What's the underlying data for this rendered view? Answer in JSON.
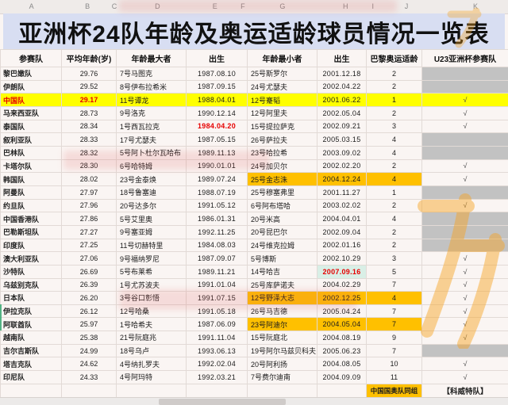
{
  "title": "亚洲杯24队年龄及奥运适龄球员情况一览表",
  "spreadsheet": {
    "column_letters": [
      "A",
      "B",
      "C",
      "D",
      "E",
      "F",
      "G",
      "H",
      "I",
      "J",
      "K"
    ],
    "letter_positions_pct": [
      6.2,
      17.2,
      22.5,
      31.0,
      42.3,
      47.8,
      55.6,
      68.0,
      73.4,
      80.0,
      93.6
    ]
  },
  "table": {
    "headers": [
      "参赛队",
      "平均年龄(岁)",
      "年龄最大者",
      "出生",
      "年龄最小者",
      "出生",
      "巴黎奥运适龄",
      "U23亚洲杯参赛队"
    ],
    "check_glyph": "√",
    "rows": [
      {
        "team": "黎巴嫩队",
        "avg": "29.76",
        "oldest": "7号马图克",
        "oldest_birth": "1987.08.10",
        "youngest": "25号斯罗尔",
        "youngest_birth": "2001.12.18",
        "paris": "2",
        "u23": false,
        "hl": {}
      },
      {
        "team": "伊朗队",
        "avg": "29.52",
        "oldest": "8号伊布拉希米",
        "oldest_birth": "1987.09.15",
        "youngest": "24号尤瑟夫",
        "youngest_birth": "2002.04.22",
        "paris": "2",
        "u23": false,
        "hl": {}
      },
      {
        "team": "中国队",
        "avg": "29.17",
        "oldest": "11号谭龙",
        "oldest_birth": "1988.04.01",
        "youngest": "12号蹇韬",
        "youngest_birth": "2001.06.22",
        "paris": "1",
        "u23": true,
        "hl": {
          "row": "yellow",
          "team": "red",
          "avg": "red"
        }
      },
      {
        "team": "马来西亚队",
        "avg": "28.73",
        "oldest": "9号洛克",
        "oldest_birth": "1990.12.14",
        "youngest": "12号阿里夫",
        "youngest_birth": "2002.05.04",
        "paris": "2",
        "u23": true,
        "hl": {}
      },
      {
        "team": "泰国队",
        "avg": "28.34",
        "oldest": "1号西瓦拉克",
        "oldest_birth": "1984.04.20",
        "youngest": "15号提拉萨克",
        "youngest_birth": "2002.09.21",
        "paris": "3",
        "u23": true,
        "hl": {
          "oldest_birth": "red"
        }
      },
      {
        "team": "叙利亚队",
        "avg": "28.33",
        "oldest": "17号尤瑟夫",
        "oldest_birth": "1987.05.15",
        "youngest": "26号萨拉夫",
        "youngest_birth": "2005.03.15",
        "paris": "4",
        "u23": false,
        "hl": {}
      },
      {
        "team": "巴林队",
        "avg": "28.32",
        "oldest": "5号阿卜杜尔瓦哈布",
        "oldest_birth": "1989.11.13",
        "youngest": "23号哈拉希",
        "youngest_birth": "2003.09.02",
        "paris": "4",
        "u23": false,
        "hl": {}
      },
      {
        "team": "卡塔尔队",
        "avg": "28.30",
        "oldest": "6号哈特姆",
        "oldest_birth": "1990.01.01",
        "youngest": "24号加贝尔",
        "youngest_birth": "2002.02.20",
        "paris": "2",
        "u23": true,
        "hl": {}
      },
      {
        "team": "韩国队",
        "avg": "28.02",
        "oldest": "23号金泰焕",
        "oldest_birth": "1989.07.24",
        "youngest": "25号金志洙",
        "youngest_birth": "2004.12.24",
        "paris": "4",
        "u23": true,
        "hl": {
          "youngest": "orange",
          "youngest_birth": "orange",
          "paris": "orange"
        }
      },
      {
        "team": "阿曼队",
        "avg": "27.97",
        "oldest": "18号鲁塞迪",
        "oldest_birth": "1988.07.19",
        "youngest": "25号穆塞弗里",
        "youngest_birth": "2001.11.27",
        "paris": "1",
        "u23": false,
        "hl": {}
      },
      {
        "team": "约旦队",
        "avg": "27.96",
        "oldest": "20号达多尔",
        "oldest_birth": "1991.05.12",
        "youngest": "6号阿布塔哈",
        "youngest_birth": "2003.02.02",
        "paris": "2",
        "u23": true,
        "hl": {}
      },
      {
        "team": "中国香港队",
        "avg": "27.86",
        "oldest": "5号艾里奥",
        "oldest_birth": "1986.01.31",
        "youngest": "20号米高",
        "youngest_birth": "2004.04.01",
        "paris": "4",
        "u23": false,
        "hl": {}
      },
      {
        "team": "巴勒斯坦队",
        "avg": "27.27",
        "oldest": "9号塞亚姆",
        "oldest_birth": "1992.11.25",
        "youngest": "20号昆巴尔",
        "youngest_birth": "2002.09.04",
        "paris": "2",
        "u23": false,
        "hl": {}
      },
      {
        "team": "印度队",
        "avg": "27.25",
        "oldest": "11号切赫特里",
        "oldest_birth": "1984.08.03",
        "youngest": "24号维克拉姆",
        "youngest_birth": "2002.01.16",
        "paris": "2",
        "u23": false,
        "hl": {}
      },
      {
        "team": "澳大利亚队",
        "avg": "27.06",
        "oldest": "9号福纳罗尼",
        "oldest_birth": "1987.09.07",
        "youngest": "5号博斯",
        "youngest_birth": "2002.10.29",
        "paris": "3",
        "u23": true,
        "hl": {}
      },
      {
        "team": "沙特队",
        "avg": "26.69",
        "oldest": "5号布莱希",
        "oldest_birth": "1989.11.21",
        "youngest": "14号哈吉",
        "youngest_birth": "2007.09.16",
        "paris": "5",
        "u23": true,
        "hl": {
          "youngest_birth": "redgreen"
        }
      },
      {
        "team": "乌兹别克队",
        "avg": "26.39",
        "oldest": "1号尤苏波夫",
        "oldest_birth": "1991.01.04",
        "youngest": "25号库萨诺夫",
        "youngest_birth": "2004.02.29",
        "paris": "7",
        "u23": true,
        "hl": {}
      },
      {
        "team": "日本队",
        "avg": "26.20",
        "oldest": "3号谷口彰悟",
        "oldest_birth": "1991.07.15",
        "youngest": "12号野泽大志",
        "youngest_birth": "2002.12.25",
        "paris": "4",
        "u23": true,
        "hl": {
          "youngest": "orange",
          "youngest_birth": "orange",
          "paris": "orange"
        }
      },
      {
        "team": "伊拉克队",
        "avg": "26.12",
        "oldest": "12号哈桑",
        "oldest_birth": "1991.05.18",
        "youngest": "26号马吉德",
        "youngest_birth": "2005.04.24",
        "paris": "7",
        "u23": true,
        "hl": {}
      },
      {
        "team": "阿联酋队",
        "avg": "25.97",
        "oldest": "1号哈希夫",
        "oldest_birth": "1987.06.09",
        "youngest": "23号阿迪尔",
        "youngest_birth": "2004.05.04",
        "paris": "7",
        "u23": true,
        "hl": {
          "youngest": "orange",
          "youngest_birth": "orange",
          "paris": "orange"
        }
      },
      {
        "team": "越南队",
        "avg": "25.38",
        "oldest": "21号阮庭兆",
        "oldest_birth": "1991.11.04",
        "youngest": "15号阮庭北",
        "youngest_birth": "2004.08.19",
        "paris": "9",
        "u23": true,
        "hl": {}
      },
      {
        "team": "吉尔吉斯队",
        "avg": "24.99",
        "oldest": "18号乌卢",
        "oldest_birth": "1993.06.13",
        "youngest": "19号阿尔马兹贝科夫",
        "youngest_birth": "2005.06.23",
        "paris": "7",
        "u23": false,
        "hl": {}
      },
      {
        "team": "塔吉克队",
        "avg": "24.62",
        "oldest": "4号纳扎罗夫",
        "oldest_birth": "1992.02.04",
        "youngest": "20号阿利扬",
        "youngest_birth": "2004.08.05",
        "paris": "10",
        "u23": true,
        "hl": {}
      },
      {
        "team": "印尼队",
        "avg": "24.33",
        "oldest": "4号阿玛特",
        "oldest_birth": "1992.03.21",
        "youngest": "7号费尔迪南",
        "youngest_birth": "2004.09.09",
        "paris": "11",
        "u23": true,
        "hl": {}
      }
    ],
    "footer": {
      "paris_note": "中国国奥队同组",
      "u23_note": "【科威特队】"
    }
  },
  "colors": {
    "title_bg": "#d8def2",
    "highlight_yellow": "#ffff00",
    "highlight_orange": "#ffc000",
    "highlight_green": "#d9efe6",
    "alert_red": "#e60000",
    "empty_gray": "#c2c2c2"
  }
}
